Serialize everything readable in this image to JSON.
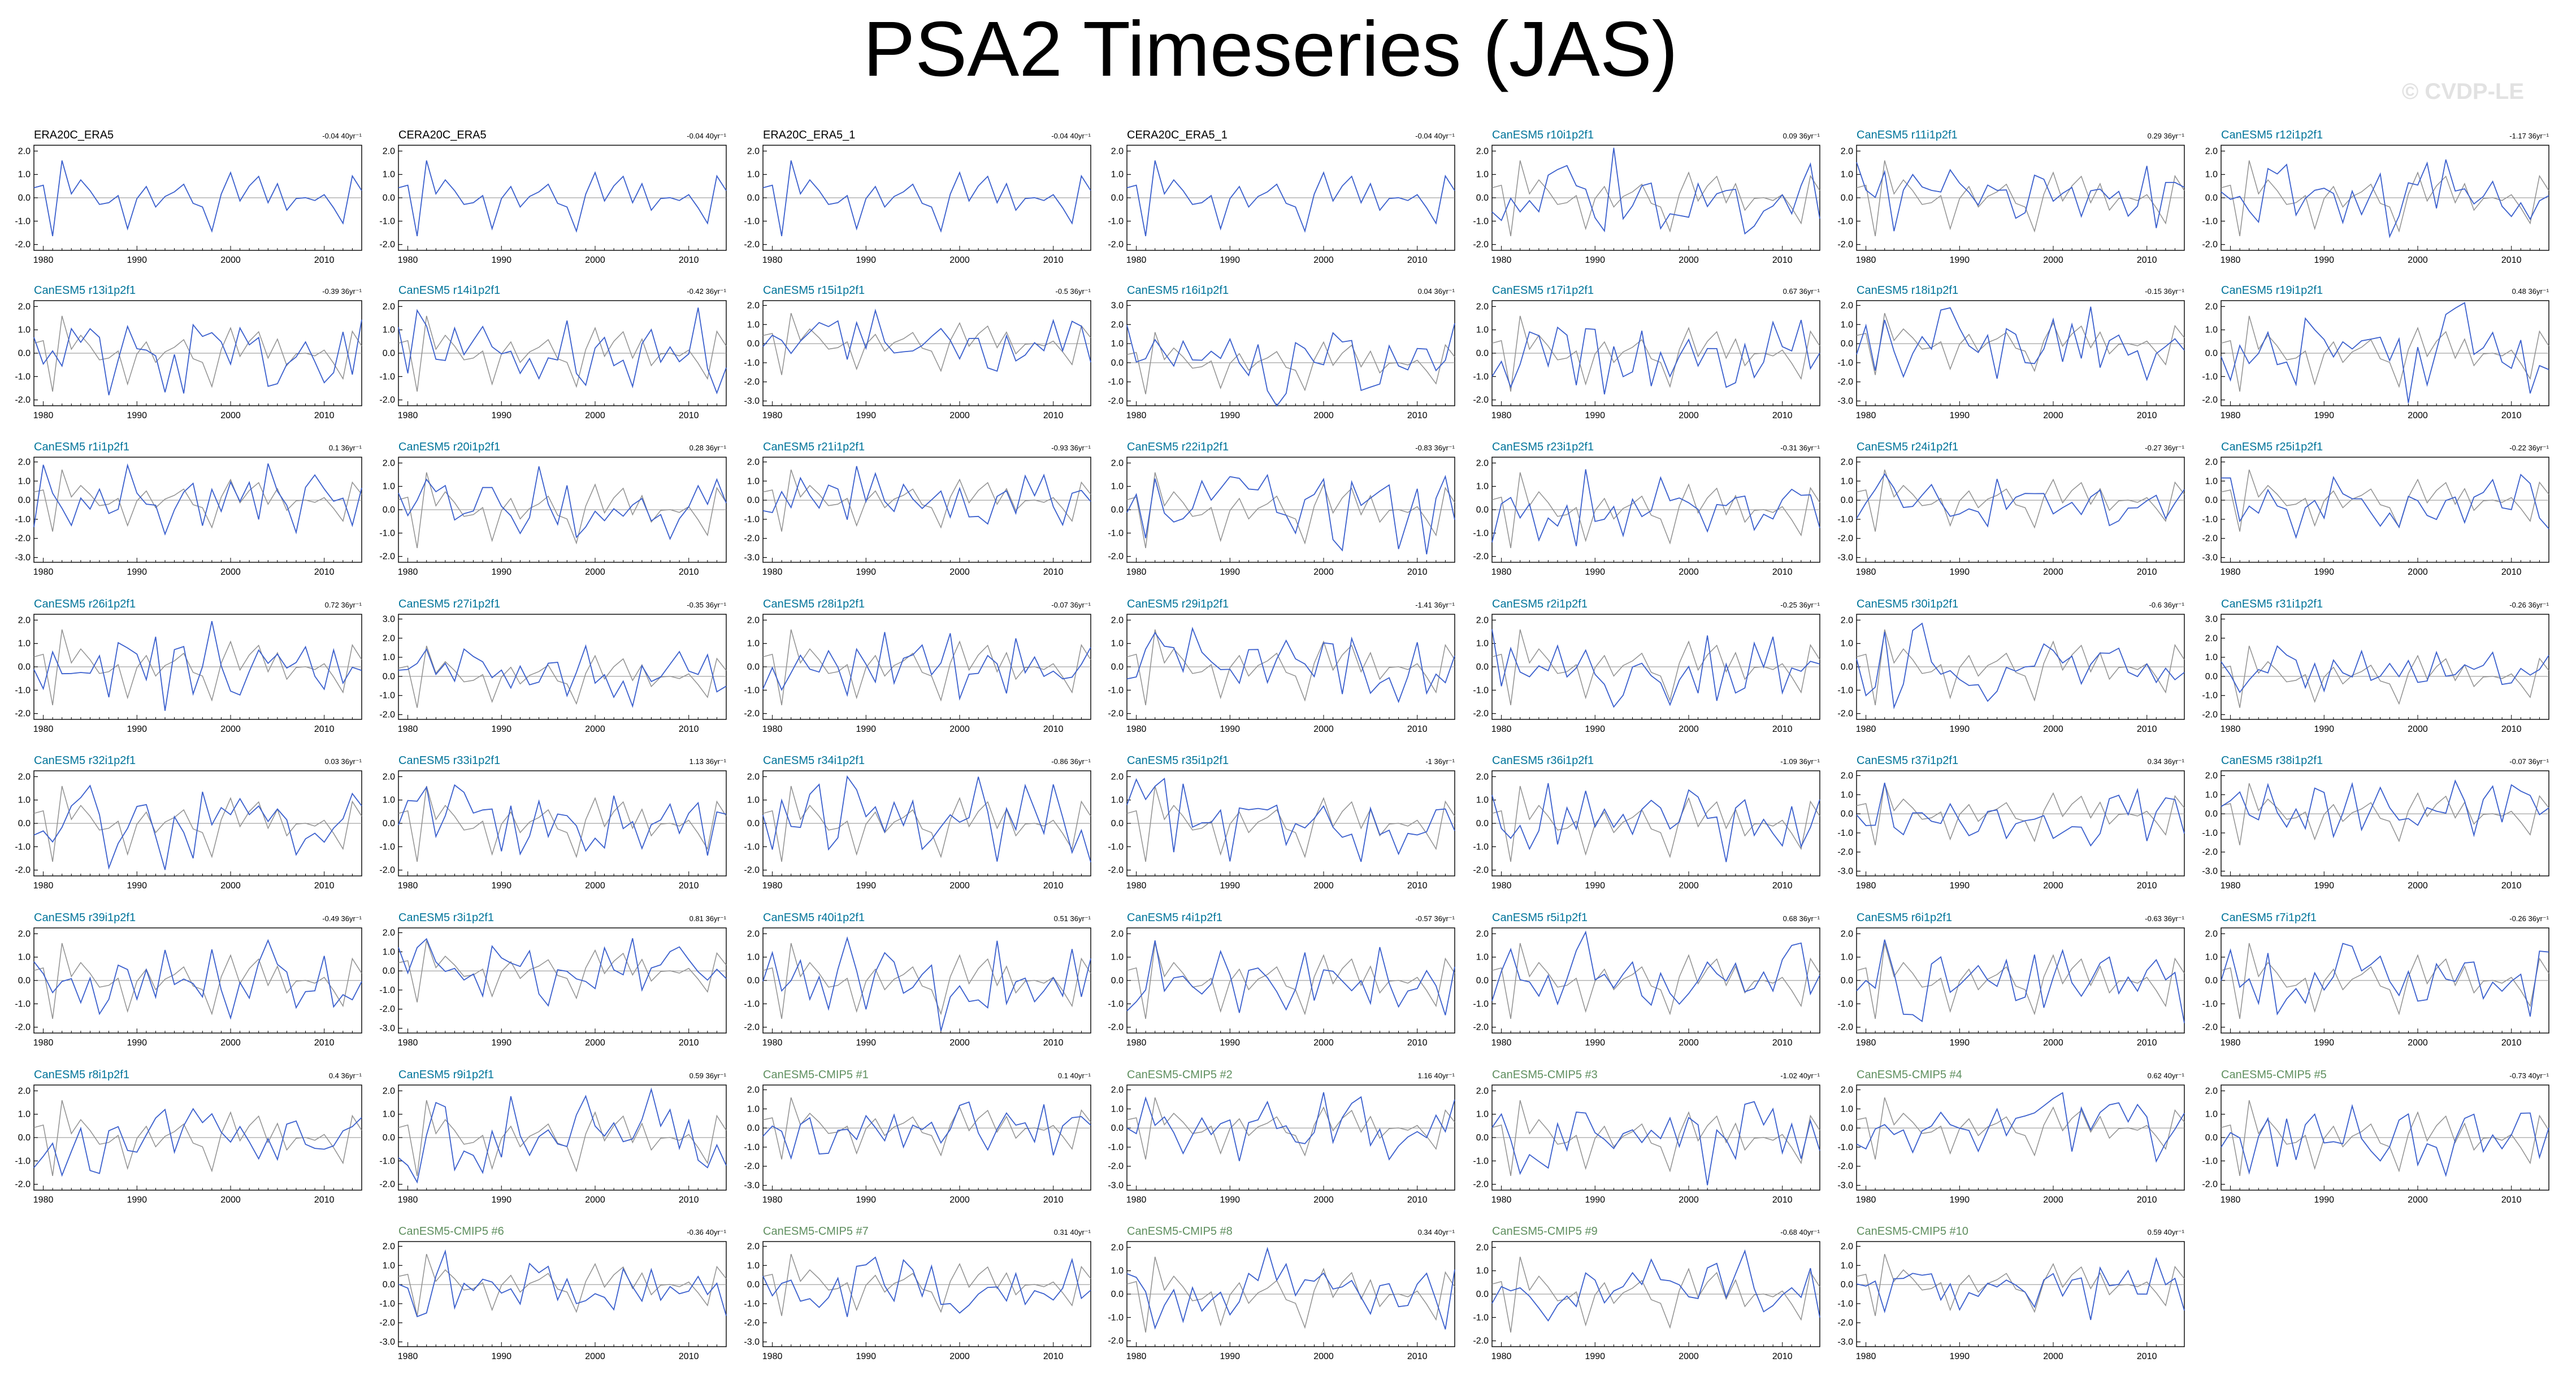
{
  "title": "PSA2 Timeseries (JAS)",
  "watermark": "© CVDP-LE",
  "colors": {
    "model": "#3a5fcd",
    "obs": "#909090",
    "title_obs": "#000000",
    "title_member": "#00749a",
    "title_mean": "#5f8f5f"
  },
  "chart_data": {
    "type": "line",
    "x_range": [
      1979,
      2014
    ],
    "x_ticks": [
      "1980",
      "1990",
      "2000",
      "2010"
    ],
    "panels": [
      {
        "title": "ERA20C_ERA5",
        "trend": "-0.04 40yr⁻¹",
        "kind": "obs",
        "y_ticks": [
          "2.0",
          "1.0",
          "0.0",
          "-1.0",
          "-2.0"
        ]
      },
      {
        "title": "CERA20C_ERA5",
        "trend": "-0.04 40yr⁻¹",
        "kind": "obs",
        "y_ticks": [
          "2.0",
          "1.0",
          "0.0",
          "-1.0",
          "-2.0"
        ]
      },
      {
        "title": "ERA20C_ERA5_1",
        "trend": "-0.04 40yr⁻¹",
        "kind": "obs",
        "y_ticks": [
          "2.0",
          "1.0",
          "0.0",
          "-1.0",
          "-2.0"
        ]
      },
      {
        "title": "CERA20C_ERA5_1",
        "trend": "-0.04 40yr⁻¹",
        "kind": "obs",
        "y_ticks": [
          "2.0",
          "1.0",
          "0.0",
          "-1.0",
          "-2.0"
        ]
      },
      {
        "title": "CanESM5 r10i1p2f1",
        "trend": "0.09 36yr⁻¹",
        "kind": "member",
        "y_ticks": [
          "2.0",
          "1.0",
          "0.0",
          "-1.0",
          "-2.0"
        ]
      },
      {
        "title": "CanESM5 r11i1p2f1",
        "trend": "0.29 36yr⁻¹",
        "kind": "member",
        "y_ticks": [
          "2.0",
          "1.0",
          "0.0",
          "-1.0",
          "-2.0"
        ]
      },
      {
        "title": "CanESM5 r12i1p2f1",
        "trend": "-1.17 36yr⁻¹",
        "kind": "member",
        "y_ticks": [
          "2.0",
          "1.0",
          "0.0",
          "-1.0",
          "-2.0"
        ]
      },
      {
        "title": "CanESM5 r13i1p2f1",
        "trend": "-0.39 36yr⁻¹",
        "kind": "member",
        "y_ticks": [
          "2.0",
          "1.0",
          "0.0",
          "-1.0",
          "-2.0"
        ]
      },
      {
        "title": "CanESM5 r14i1p2f1",
        "trend": "-0.42 36yr⁻¹",
        "kind": "member",
        "y_ticks": [
          "2.0",
          "1.0",
          "0.0",
          "-1.0",
          "-2.0"
        ]
      },
      {
        "title": "CanESM5 r15i1p2f1",
        "trend": "-0.5 36yr⁻¹",
        "kind": "member",
        "y_ticks": [
          "2.0",
          "1.0",
          "0.0",
          "-1.0",
          "-2.0",
          "-3.0"
        ]
      },
      {
        "title": "CanESM5 r16i1p2f1",
        "trend": "0.04 36yr⁻¹",
        "kind": "member",
        "y_ticks": [
          "3.0",
          "2.0",
          "1.0",
          "0.0",
          "-1.0",
          "-2.0"
        ]
      },
      {
        "title": "CanESM5 r17i1p2f1",
        "trend": "0.67 36yr⁻¹",
        "kind": "member",
        "y_ticks": [
          "2.0",
          "1.0",
          "0.0",
          "-1.0",
          "-2.0"
        ]
      },
      {
        "title": "CanESM5 r18i1p2f1",
        "trend": "-0.15 36yr⁻¹",
        "kind": "member",
        "y_ticks": [
          "2.0",
          "1.0",
          "0.0",
          "-1.0",
          "-2.0",
          "-3.0"
        ]
      },
      {
        "title": "CanESM5 r19i1p2f1",
        "trend": "0.48 36yr⁻¹",
        "kind": "member",
        "y_ticks": [
          "2.0",
          "1.0",
          "0.0",
          "-1.0",
          "-2.0"
        ]
      },
      {
        "title": "CanESM5 r1i1p2f1",
        "trend": "0.1 36yr⁻¹",
        "kind": "member",
        "y_ticks": [
          "2.0",
          "1.0",
          "0.0",
          "-1.0",
          "-2.0",
          "-3.0"
        ]
      },
      {
        "title": "CanESM5 r20i1p2f1",
        "trend": "0.28 36yr⁻¹",
        "kind": "member",
        "y_ticks": [
          "2.0",
          "1.0",
          "0.0",
          "-1.0",
          "-2.0"
        ]
      },
      {
        "title": "CanESM5 r21i1p2f1",
        "trend": "-0.93 36yr⁻¹",
        "kind": "member",
        "y_ticks": [
          "2.0",
          "1.0",
          "0.0",
          "-1.0",
          "-2.0",
          "-3.0"
        ]
      },
      {
        "title": "CanESM5 r22i1p2f1",
        "trend": "-0.83 36yr⁻¹",
        "kind": "member",
        "y_ticks": [
          "2.0",
          "1.0",
          "0.0",
          "-1.0",
          "-2.0"
        ]
      },
      {
        "title": "CanESM5 r23i1p2f1",
        "trend": "-0.31 36yr⁻¹",
        "kind": "member",
        "y_ticks": [
          "2.0",
          "1.0",
          "0.0",
          "-1.0",
          "-2.0"
        ]
      },
      {
        "title": "CanESM5 r24i1p2f1",
        "trend": "-0.27 36yr⁻¹",
        "kind": "member",
        "y_ticks": [
          "2.0",
          "1.0",
          "0.0",
          "-1.0",
          "-2.0",
          "-3.0"
        ]
      },
      {
        "title": "CanESM5 r25i1p2f1",
        "trend": "-0.22 36yr⁻¹",
        "kind": "member",
        "y_ticks": [
          "2.0",
          "1.0",
          "0.0",
          "-1.0",
          "-2.0",
          "-3.0"
        ]
      },
      {
        "title": "CanESM5 r26i1p2f1",
        "trend": "0.72 36yr⁻¹",
        "kind": "member",
        "y_ticks": [
          "2.0",
          "1.0",
          "0.0",
          "-1.0",
          "-2.0"
        ]
      },
      {
        "title": "CanESM5 r27i1p2f1",
        "trend": "-0.35 36yr⁻¹",
        "kind": "member",
        "y_ticks": [
          "3.0",
          "2.0",
          "1.0",
          "0.0",
          "-1.0",
          "-2.0"
        ]
      },
      {
        "title": "CanESM5 r28i1p2f1",
        "trend": "-0.07 36yr⁻¹",
        "kind": "member",
        "y_ticks": [
          "2.0",
          "1.0",
          "0.0",
          "-1.0",
          "-2.0"
        ]
      },
      {
        "title": "CanESM5 r29i1p2f1",
        "trend": "-1.41 36yr⁻¹",
        "kind": "member",
        "y_ticks": [
          "2.0",
          "1.0",
          "0.0",
          "-1.0",
          "-2.0"
        ]
      },
      {
        "title": "CanESM5 r2i1p2f1",
        "trend": "-0.25 36yr⁻¹",
        "kind": "member",
        "y_ticks": [
          "2.0",
          "1.0",
          "0.0",
          "-1.0",
          "-2.0"
        ]
      },
      {
        "title": "CanESM5 r30i1p2f1",
        "trend": "-0.6 36yr⁻¹",
        "kind": "member",
        "y_ticks": [
          "2.0",
          "1.0",
          "0.0",
          "-1.0",
          "-2.0"
        ]
      },
      {
        "title": "CanESM5 r31i1p2f1",
        "trend": "-0.26 36yr⁻¹",
        "kind": "member",
        "y_ticks": [
          "3.0",
          "2.0",
          "1.0",
          "0.0",
          "-1.0",
          "-2.0"
        ]
      },
      {
        "title": "CanESM5 r32i1p2f1",
        "trend": "0.03 36yr⁻¹",
        "kind": "member",
        "y_ticks": [
          "2.0",
          "1.0",
          "0.0",
          "-1.0",
          "-2.0"
        ]
      },
      {
        "title": "CanESM5 r33i1p2f1",
        "trend": "1.13 36yr⁻¹",
        "kind": "member",
        "y_ticks": [
          "2.0",
          "1.0",
          "0.0",
          "-1.0",
          "-2.0"
        ]
      },
      {
        "title": "CanESM5 r34i1p2f1",
        "trend": "-0.86 36yr⁻¹",
        "kind": "member",
        "y_ticks": [
          "2.0",
          "1.0",
          "0.0",
          "-1.0",
          "-2.0"
        ]
      },
      {
        "title": "CanESM5 r35i1p2f1",
        "trend": "-1 36yr⁻¹",
        "kind": "member",
        "y_ticks": [
          "2.0",
          "1.0",
          "0.0",
          "-1.0",
          "-2.0"
        ]
      },
      {
        "title": "CanESM5 r36i1p2f1",
        "trend": "-1.09 36yr⁻¹",
        "kind": "member",
        "y_ticks": [
          "2.0",
          "1.0",
          "0.0",
          "-1.0",
          "-2.0"
        ]
      },
      {
        "title": "CanESM5 r37i1p2f1",
        "trend": "0.34 36yr⁻¹",
        "kind": "member",
        "y_ticks": [
          "2.0",
          "1.0",
          "0.0",
          "-1.0",
          "-2.0",
          "-3.0"
        ]
      },
      {
        "title": "CanESM5 r38i1p2f1",
        "trend": "-0.07 36yr⁻¹",
        "kind": "member",
        "y_ticks": [
          "2.0",
          "1.0",
          "0.0",
          "-1.0",
          "-2.0",
          "-3.0"
        ]
      },
      {
        "title": "CanESM5 r39i1p2f1",
        "trend": "-0.49 36yr⁻¹",
        "kind": "member",
        "y_ticks": [
          "2.0",
          "1.0",
          "0.0",
          "-1.0",
          "-2.0"
        ]
      },
      {
        "title": "CanESM5 r3i1p2f1",
        "trend": "0.81 36yr⁻¹",
        "kind": "member",
        "y_ticks": [
          "2.0",
          "1.0",
          "0.0",
          "-1.0",
          "-2.0",
          "-3.0"
        ]
      },
      {
        "title": "CanESM5 r40i1p2f1",
        "trend": "0.51 36yr⁻¹",
        "kind": "member",
        "y_ticks": [
          "2.0",
          "1.0",
          "0.0",
          "-1.0",
          "-2.0"
        ]
      },
      {
        "title": "CanESM5 r4i1p2f1",
        "trend": "-0.57 36yr⁻¹",
        "kind": "member",
        "y_ticks": [
          "2.0",
          "1.0",
          "0.0",
          "-1.0",
          "-2.0"
        ]
      },
      {
        "title": "CanESM5 r5i1p2f1",
        "trend": "0.68 36yr⁻¹",
        "kind": "member",
        "y_ticks": [
          "2.0",
          "1.0",
          "0.0",
          "-1.0",
          "-2.0"
        ]
      },
      {
        "title": "CanESM5 r6i1p2f1",
        "trend": "-0.63 36yr⁻¹",
        "kind": "member",
        "y_ticks": [
          "2.0",
          "1.0",
          "0.0",
          "-1.0",
          "-2.0"
        ]
      },
      {
        "title": "CanESM5 r7i1p2f1",
        "trend": "-0.26 36yr⁻¹",
        "kind": "member",
        "y_ticks": [
          "2.0",
          "1.0",
          "0.0",
          "-1.0",
          "-2.0"
        ]
      },
      {
        "title": "CanESM5 r8i1p2f1",
        "trend": "0.4 36yr⁻¹",
        "kind": "member",
        "y_ticks": [
          "2.0",
          "1.0",
          "0.0",
          "-1.0",
          "-2.0"
        ]
      },
      {
        "title": "CanESM5 r9i1p2f1",
        "trend": "0.59 36yr⁻¹",
        "kind": "member",
        "y_ticks": [
          "2.0",
          "1.0",
          "0.0",
          "-1.0",
          "-2.0"
        ]
      },
      {
        "title": "CanESM5-CMIP5 #1",
        "trend": "0.1 40yr⁻¹",
        "kind": "mean",
        "y_ticks": [
          "2.0",
          "1.0",
          "0.0",
          "-1.0",
          "-2.0",
          "-3.0"
        ]
      },
      {
        "title": "CanESM5-CMIP5 #2",
        "trend": "1.16 40yr⁻¹",
        "kind": "mean",
        "y_ticks": [
          "2.0",
          "1.0",
          "0.0",
          "-1.0",
          "-2.0",
          "-3.0"
        ]
      },
      {
        "title": "CanESM5-CMIP5 #3",
        "trend": "-1.02 40yr⁻¹",
        "kind": "mean",
        "y_ticks": [
          "2.0",
          "1.0",
          "0.0",
          "-1.0",
          "-2.0"
        ]
      },
      {
        "title": "CanESM5-CMIP5 #4",
        "trend": "0.62 40yr⁻¹",
        "kind": "mean",
        "y_ticks": [
          "2.0",
          "1.0",
          "0.0",
          "-1.0",
          "-2.0",
          "-3.0"
        ]
      },
      {
        "title": "CanESM5-CMIP5 #5",
        "trend": "-0.73 40yr⁻¹",
        "kind": "mean",
        "y_ticks": [
          "2.0",
          "1.0",
          "0.0",
          "-1.0",
          "-2.0"
        ]
      },
      {
        "title": "CanESM5-CMIP5 #6",
        "trend": "-0.36 40yr⁻¹",
        "kind": "mean",
        "y_ticks": [
          "2.0",
          "1.0",
          "0.0",
          "-1.0",
          "-2.0",
          "-3.0"
        ]
      },
      {
        "title": "CanESM5-CMIP5 #7",
        "trend": "0.31 40yr⁻¹",
        "kind": "mean",
        "y_ticks": [
          "2.0",
          "1.0",
          "0.0",
          "-1.0",
          "-2.0",
          "-3.0"
        ]
      },
      {
        "title": "CanESM5-CMIP5 #8",
        "trend": "0.34 40yr⁻¹",
        "kind": "mean",
        "y_ticks": [
          "2.0",
          "1.0",
          "0.0",
          "-1.0",
          "-2.0"
        ]
      },
      {
        "title": "CanESM5-CMIP5 #9",
        "trend": "-0.68 40yr⁻¹",
        "kind": "mean",
        "y_ticks": [
          "2.0",
          "1.0",
          "0.0",
          "-1.0",
          "-2.0"
        ]
      },
      {
        "title": "CanESM5-CMIP5 #10",
        "trend": "0.59 40yr⁻¹",
        "kind": "mean",
        "y_ticks": [
          "2.0",
          "1.0",
          "0.0",
          "-1.0",
          "-2.0",
          "-3.0"
        ]
      }
    ]
  }
}
